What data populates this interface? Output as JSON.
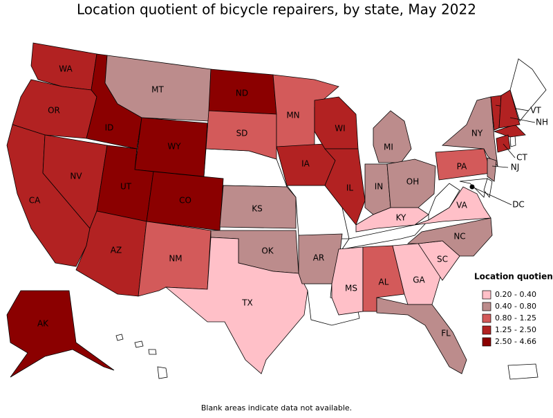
{
  "title": "Location quotient of bicycle repairers, by state, May 2022",
  "legend": {
    "title": "Location quotient",
    "items": [
      {
        "label": "0.20 - 0.40",
        "color": "#ffc0c8"
      },
      {
        "label": "0.40 - 0.80",
        "color": "#bc8c8c"
      },
      {
        "label": "0.80 - 1.25",
        "color": "#d35a5a"
      },
      {
        "label": "1.25 - 2.50",
        "color": "#b22222"
      },
      {
        "label": "2.50 - 4.66",
        "color": "#8b0000"
      }
    ]
  },
  "states": [
    {
      "label": "WA",
      "color": "#b22222"
    },
    {
      "label": "OR",
      "color": "#b22222"
    },
    {
      "label": "CA",
      "color": "#b22222"
    },
    {
      "label": "NV",
      "color": "#b22222"
    },
    {
      "label": "ID",
      "color": "#8b0000"
    },
    {
      "label": "MT",
      "color": "#bc8c8c"
    },
    {
      "label": "WY",
      "color": "#8b0000"
    },
    {
      "label": "UT",
      "color": "#8b0000"
    },
    {
      "label": "CO",
      "color": "#8b0000"
    },
    {
      "label": "AZ",
      "color": "#b22222"
    },
    {
      "label": "NM",
      "color": "#d35a5a"
    },
    {
      "label": "ND",
      "color": "#8b0000"
    },
    {
      "label": "SD",
      "color": "#d35a5a"
    },
    {
      "label": "KS",
      "color": "#bc8c8c"
    },
    {
      "label": "OK",
      "color": "#bc8c8c"
    },
    {
      "label": "TX",
      "color": "#ffc0c8"
    },
    {
      "label": "MN",
      "color": "#d35a5a"
    },
    {
      "label": "IA",
      "color": "#b22222"
    },
    {
      "label": "AR",
      "color": "#bc8c8c"
    },
    {
      "label": "WI",
      "color": "#b22222"
    },
    {
      "label": "IL",
      "color": "#b22222"
    },
    {
      "label": "MI",
      "color": "#bc8c8c"
    },
    {
      "label": "IN",
      "color": "#bc8c8c"
    },
    {
      "label": "OH",
      "color": "#bc8c8c"
    },
    {
      "label": "KY",
      "color": "#ffc0c8"
    },
    {
      "label": "MS",
      "color": "#ffc0c8"
    },
    {
      "label": "AL",
      "color": "#d35a5a"
    },
    {
      "label": "GA",
      "color": "#ffc0c8"
    },
    {
      "label": "FL",
      "color": "#bc8c8c"
    },
    {
      "label": "SC",
      "color": "#ffc0c8"
    },
    {
      "label": "NC",
      "color": "#bc8c8c"
    },
    {
      "label": "VA",
      "color": "#ffc0c8"
    },
    {
      "label": "PA",
      "color": "#d35a5a"
    },
    {
      "label": "NY",
      "color": "#bc8c8c"
    },
    {
      "label": "NJ",
      "color": "#bc8c8c"
    },
    {
      "label": "CT",
      "color": "#b22222"
    },
    {
      "label": "VT",
      "color": "#b22222"
    },
    {
      "label": "NH",
      "color": "#b22222"
    },
    {
      "label": "DC",
      "color": "#000000"
    },
    {
      "label": "AK",
      "color": "#8b0000"
    }
  ],
  "footnote": "Blank areas indicate data not available."
}
